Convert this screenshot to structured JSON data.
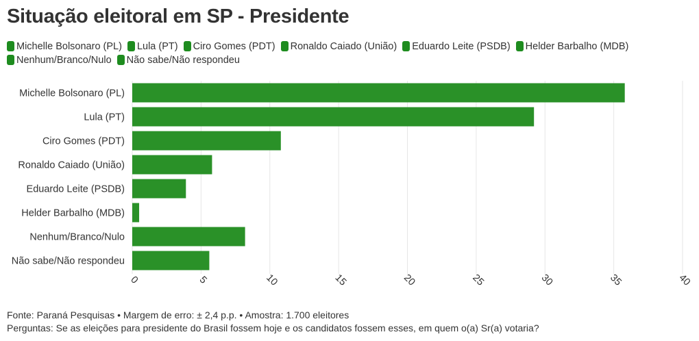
{
  "title": "Situação eleitoral em SP - Presidente",
  "colors": {
    "bar": "#2a9128",
    "legend": "#1e8c1f",
    "grid": "#e6e6e6",
    "text": "#333333"
  },
  "legend": [
    "Michelle Bolsonaro (PL)",
    "Lula (PT)",
    "Ciro Gomes (PDT)",
    "Ronaldo Caiado (União)",
    "Eduardo Leite (PSDB)",
    "Helder Barbalho (MDB)",
    "Nenhum/Branco/Nulo",
    "Não sabe/Não respondeu"
  ],
  "chart_data": {
    "type": "bar",
    "orientation": "horizontal",
    "categories": [
      "Michelle Bolsonaro (PL)",
      "Lula (PT)",
      "Ciro Gomes (PDT)",
      "Ronaldo Caiado (União)",
      "Eduardo Leite (PSDB)",
      "Helder Barbalho (MDB)",
      "Nenhum/Branco/Nulo",
      "Não sabe/Não respondeu"
    ],
    "values": [
      35.8,
      29.2,
      10.8,
      5.8,
      3.9,
      0.5,
      8.2,
      5.6
    ],
    "xlim": [
      0,
      40
    ],
    "xticks": [
      0,
      5,
      10,
      15,
      20,
      25,
      30,
      35,
      40
    ],
    "grid": true,
    "title": "Situação eleitoral em SP - Presidente",
    "xlabel": "",
    "ylabel": ""
  },
  "footer": {
    "source": "Fonte: Paraná Pesquisas • Margem de erro: ± 2,4 p.p. • Amostra: 1.700 eleitores",
    "question": "Perguntas: Se as eleições para presidente do Brasil fossem hoje e os candidatos fossem esses, em quem o(a) Sr(a) votaria?"
  }
}
